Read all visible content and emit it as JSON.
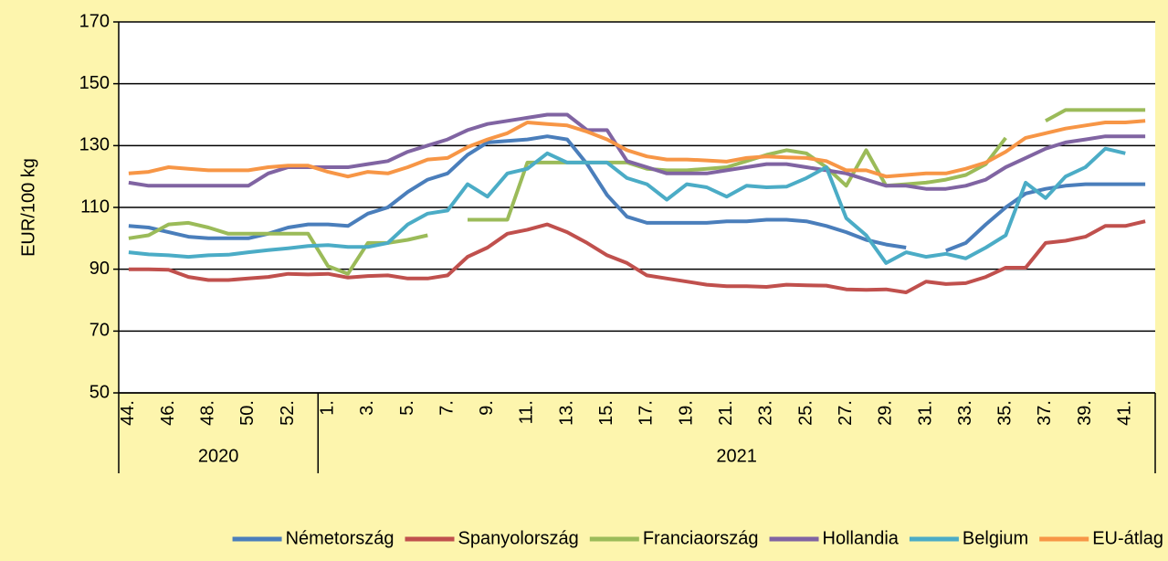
{
  "chart_data": {
    "type": "line",
    "y_label": "EUR/100 kg",
    "categories": [
      "44.",
      null,
      "46.",
      null,
      "48.",
      null,
      "50.",
      null,
      "52.",
      null,
      "1.",
      null,
      "3.",
      null,
      "5.",
      null,
      "7.",
      null,
      "9.",
      null,
      "11.",
      null,
      "13.",
      null,
      "15.",
      null,
      "17.",
      null,
      "19.",
      null,
      "21.",
      null,
      "23.",
      null,
      "25.",
      null,
      "27.",
      null,
      "29.",
      null,
      "31.",
      null,
      "33.",
      null,
      "35.",
      null,
      "37.",
      null,
      "39.",
      null,
      "41.",
      null
    ],
    "groups": [
      {
        "label": "2020",
        "span": 10
      },
      {
        "label": "2021",
        "span": 42
      }
    ],
    "series": [
      {
        "name": "Németország",
        "color": "#4a7ebb",
        "values": [
          104,
          103.5,
          102,
          100.5,
          100,
          100,
          100,
          101.5,
          103.5,
          104.5,
          104.5,
          104,
          108,
          110,
          115,
          119,
          121,
          127,
          131,
          131.5,
          132,
          133,
          132,
          124,
          114,
          107,
          105,
          105,
          105,
          105,
          105.5,
          105.5,
          106,
          106,
          105.5,
          104,
          102,
          99.5,
          98,
          97,
          null,
          96,
          98.5,
          104.5,
          110,
          114.5,
          116,
          117,
          117.5,
          117.5,
          117.5,
          117.5
        ]
      },
      {
        "name": "Spanyolország",
        "color": "#c0504d",
        "values": [
          90,
          90,
          89.8,
          87.5,
          86.5,
          86.5,
          87,
          87.5,
          88.5,
          88.3,
          88.5,
          87.3,
          87.8,
          88,
          87,
          87,
          88,
          94,
          97,
          101.5,
          102.8,
          104.5,
          102,
          98.5,
          94.5,
          92,
          88,
          87,
          86,
          85,
          84.5,
          84.5,
          84.3,
          85,
          84.8,
          84.7,
          83.5,
          83.3,
          83.5,
          82.5,
          86,
          85.2,
          85.5,
          87.5,
          90.5,
          90.5,
          98.5,
          99.2,
          100.5,
          104,
          104,
          105.5
        ]
      },
      {
        "name": "Franciaország",
        "color": "#9bbb59",
        "values": [
          100,
          101,
          104.5,
          105,
          103.5,
          101.5,
          101.5,
          101.5,
          101.5,
          101.5,
          91,
          88.5,
          98.5,
          98.5,
          99.5,
          101,
          null,
          106,
          106,
          106,
          124.5,
          124.5,
          124.5,
          124.5,
          124.5,
          124.5,
          122.5,
          122,
          122,
          122.5,
          123,
          125,
          127,
          128.5,
          127.5,
          123,
          117,
          128.5,
          117,
          117.5,
          118,
          119,
          120.5,
          124,
          132.5,
          null,
          138,
          141.5,
          141.5,
          141.5,
          141.5,
          141.5
        ]
      },
      {
        "name": "Hollandia",
        "color": "#8064a2",
        "values": [
          118,
          117,
          117,
          117,
          117,
          117,
          117,
          121,
          123,
          123,
          123,
          123,
          124,
          125,
          128,
          130,
          132,
          135,
          137,
          138,
          139,
          140,
          140,
          135,
          135,
          125,
          123,
          121,
          121,
          121,
          122,
          123,
          124,
          124,
          123,
          122,
          121,
          119,
          117,
          117,
          116,
          116,
          117,
          119,
          123,
          126,
          129,
          131,
          132,
          133,
          133,
          133
        ]
      },
      {
        "name": "Belgium",
        "color": "#4bacc6",
        "values": [
          95.5,
          94.8,
          94.5,
          94,
          94.5,
          94.7,
          95.5,
          96.2,
          96.8,
          97.5,
          97.8,
          97.2,
          97.2,
          98.5,
          104.5,
          108,
          109,
          117.5,
          113.5,
          121,
          122.5,
          127.5,
          124.5,
          124.5,
          124.5,
          119.5,
          117.5,
          112.5,
          117.5,
          116.5,
          113.5,
          117,
          116.5,
          116.7,
          119.5,
          123,
          106.5,
          101,
          92,
          95.5,
          94,
          95,
          93.5,
          97,
          101,
          118,
          113,
          120,
          123,
          129,
          127.5,
          null
        ]
      },
      {
        "name": "EU-átlag",
        "color": "#f79646",
        "values": [
          121,
          121.5,
          123,
          122.5,
          122,
          122,
          122,
          123,
          123.5,
          123.5,
          121.5,
          120,
          121.5,
          121,
          123,
          125.5,
          126,
          129.5,
          132,
          134,
          137.5,
          137,
          136.5,
          134.5,
          132,
          128.5,
          126.5,
          125.5,
          125.5,
          125.2,
          124.8,
          126,
          126.5,
          126.2,
          126,
          125,
          122,
          122,
          120,
          120.5,
          121,
          121,
          122.5,
          124.5,
          128,
          132.5,
          134,
          135.5,
          136.5,
          137.5,
          137.5,
          138
        ]
      }
    ],
    "ylim": [
      50,
      170
    ],
    "yticks": [
      50,
      70,
      90,
      110,
      130,
      150,
      170
    ],
    "grid": true
  }
}
